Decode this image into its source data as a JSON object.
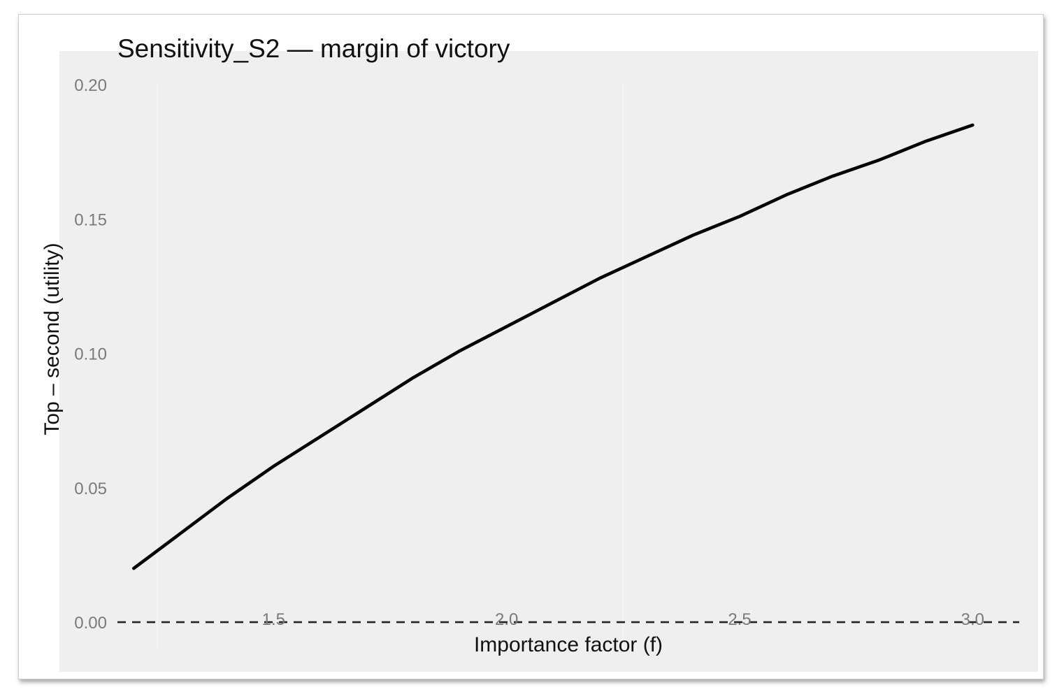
{
  "chart_data": {
    "type": "line",
    "title": "Sensitivity_S2 — margin of victory",
    "xlabel": "Importance factor (f)",
    "ylabel": "Top – second (utility)",
    "xlim": [
      1.0,
      3.1
    ],
    "ylim": [
      -0.013,
      0.218
    ],
    "x_ticks": [
      1.5,
      2.0,
      2.5,
      3.0
    ],
    "x_tick_labels": [
      "1.5",
      "2.0",
      "2.5",
      "3.0"
    ],
    "y_ticks": [
      0.0,
      0.05,
      0.1,
      0.15,
      0.2
    ],
    "y_tick_labels": [
      "0.00",
      "0.05",
      "0.10",
      "0.15",
      "0.20"
    ],
    "vertical_gridlines_x": [
      1.25,
      2.25
    ],
    "grid": true,
    "reference_line": {
      "y": 0.0,
      "style": "dashed"
    },
    "series": [
      {
        "x": [
          1.2,
          1.3,
          1.4,
          1.5,
          1.6,
          1.7,
          1.8,
          1.9,
          2.0,
          2.1,
          2.2,
          2.3,
          2.4,
          2.5,
          2.6,
          2.7,
          2.8,
          2.9,
          3.0
        ],
        "values": [
          0.02,
          0.033,
          0.046,
          0.058,
          0.069,
          0.08,
          0.091,
          0.101,
          0.11,
          0.119,
          0.128,
          0.136,
          0.144,
          0.151,
          0.159,
          0.166,
          0.172,
          0.179,
          0.185
        ],
        "color": "#000000"
      }
    ]
  }
}
